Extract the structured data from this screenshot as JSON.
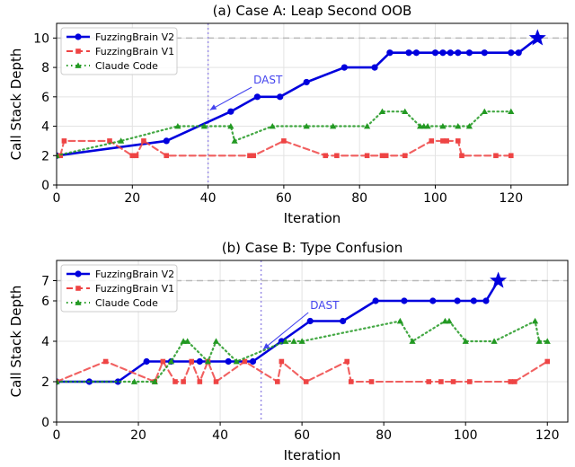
{
  "chart_data": [
    {
      "type": "line",
      "title": "(a) Case A: Leap Second OOB",
      "xlabel": "Iteration",
      "ylabel": "Call Stack Depth",
      "xlim": [
        0,
        135
      ],
      "ylim": [
        0,
        11
      ],
      "xticks": [
        0,
        20,
        40,
        60,
        80,
        100,
        120
      ],
      "yticks": [
        0,
        2,
        4,
        6,
        8,
        10
      ],
      "grid": true,
      "legend_position": "top-left",
      "target_depth": 10,
      "vline_x": 40,
      "annotation": {
        "text": "DAST",
        "color": "#4444ee",
        "point": [
          40.5,
          5.1
        ],
        "text_pos": [
          52,
          6.9
        ]
      },
      "series": [
        {
          "name": "FuzzingBrain V2",
          "color": "#0000dd",
          "marker": "circle",
          "style": "solid",
          "x": [
            0,
            29,
            46,
            53,
            59,
            66,
            76,
            84,
            88,
            93,
            95,
            100,
            102,
            104,
            106,
            109,
            113,
            120,
            122,
            127
          ],
          "y": [
            2,
            3,
            5,
            6,
            6,
            7,
            8,
            8,
            9,
            9,
            9,
            9,
            9,
            9,
            9,
            9,
            9,
            9,
            9,
            10
          ],
          "final_star": true
        },
        {
          "name": "FuzzingBrain V1",
          "color": "#ee4444",
          "marker": "square",
          "style": "dashed",
          "x": [
            1,
            2,
            14,
            20,
            21,
            23,
            29,
            51,
            52,
            60,
            71,
            74,
            82,
            86,
            87,
            92,
            99,
            102,
            103,
            106,
            107,
            116,
            120
          ],
          "y": [
            2,
            3,
            3,
            2,
            2,
            3,
            2,
            2,
            2,
            3,
            2,
            2,
            2,
            2,
            2,
            2,
            3,
            3,
            3,
            3,
            2,
            2,
            2
          ]
        },
        {
          "name": "Claude Code",
          "color": "#229922",
          "marker": "triangle",
          "style": "dotted",
          "x": [
            0,
            17,
            32,
            39,
            46,
            47,
            57,
            66,
            73,
            82,
            86,
            92,
            96,
            97,
            98,
            102,
            106,
            109,
            113,
            120
          ],
          "y": [
            2,
            3,
            4,
            4,
            4,
            3,
            4,
            4,
            4,
            4,
            5,
            5,
            4,
            4,
            4,
            4,
            4,
            4,
            5,
            5
          ]
        }
      ]
    },
    {
      "type": "line",
      "title": "(b) Case B: Type Confusion",
      "xlabel": "Iteration",
      "ylabel": "Call Stack Depth",
      "xlim": [
        0,
        125
      ],
      "ylim": [
        0,
        8
      ],
      "xticks": [
        0,
        20,
        40,
        60,
        80,
        100,
        120
      ],
      "yticks": [
        0,
        2,
        4,
        6,
        7
      ],
      "grid": true,
      "legend_position": "top-left",
      "target_depth": 7,
      "vline_x": 50,
      "annotation": {
        "text": "DAST",
        "color": "#4444ee",
        "point": [
          50.5,
          3.6
        ],
        "text_pos": [
          62,
          5.6
        ]
      },
      "series": [
        {
          "name": "FuzzingBrain V2",
          "color": "#0000dd",
          "marker": "circle",
          "style": "solid",
          "x": [
            0,
            8,
            15,
            22,
            28,
            35,
            42,
            48,
            55,
            62,
            70,
            78,
            85,
            92,
            98,
            102,
            105,
            108
          ],
          "y": [
            2,
            2,
            2,
            3,
            3,
            3,
            3,
            3,
            4,
            5,
            5,
            6,
            6,
            6,
            6,
            6,
            6,
            7
          ],
          "final_star": true
        },
        {
          "name": "FuzzingBrain V1",
          "color": "#ee4444",
          "marker": "square",
          "style": "dashed",
          "x": [
            0,
            12,
            24,
            26,
            29,
            31,
            33,
            35,
            37,
            39,
            46,
            54,
            55,
            61,
            71,
            72,
            77,
            91,
            94,
            97,
            101,
            111,
            112,
            120
          ],
          "y": [
            2,
            3,
            2,
            3,
            2,
            2,
            3,
            2,
            3,
            2,
            3,
            2,
            3,
            2,
            3,
            2,
            2,
            2,
            2,
            2,
            2,
            2,
            2,
            3
          ]
        },
        {
          "name": "Claude Code",
          "color": "#229922",
          "marker": "triangle",
          "style": "dotted",
          "x": [
            0,
            19,
            24,
            28,
            31,
            32,
            37,
            39,
            44,
            56,
            58,
            60,
            84,
            87,
            95,
            96,
            100,
            107,
            117,
            118,
            120
          ],
          "y": [
            2,
            2,
            2,
            3,
            4,
            4,
            3,
            4,
            3,
            4,
            4,
            4,
            5,
            4,
            5,
            5,
            4,
            4,
            5,
            4,
            4
          ]
        }
      ]
    }
  ]
}
